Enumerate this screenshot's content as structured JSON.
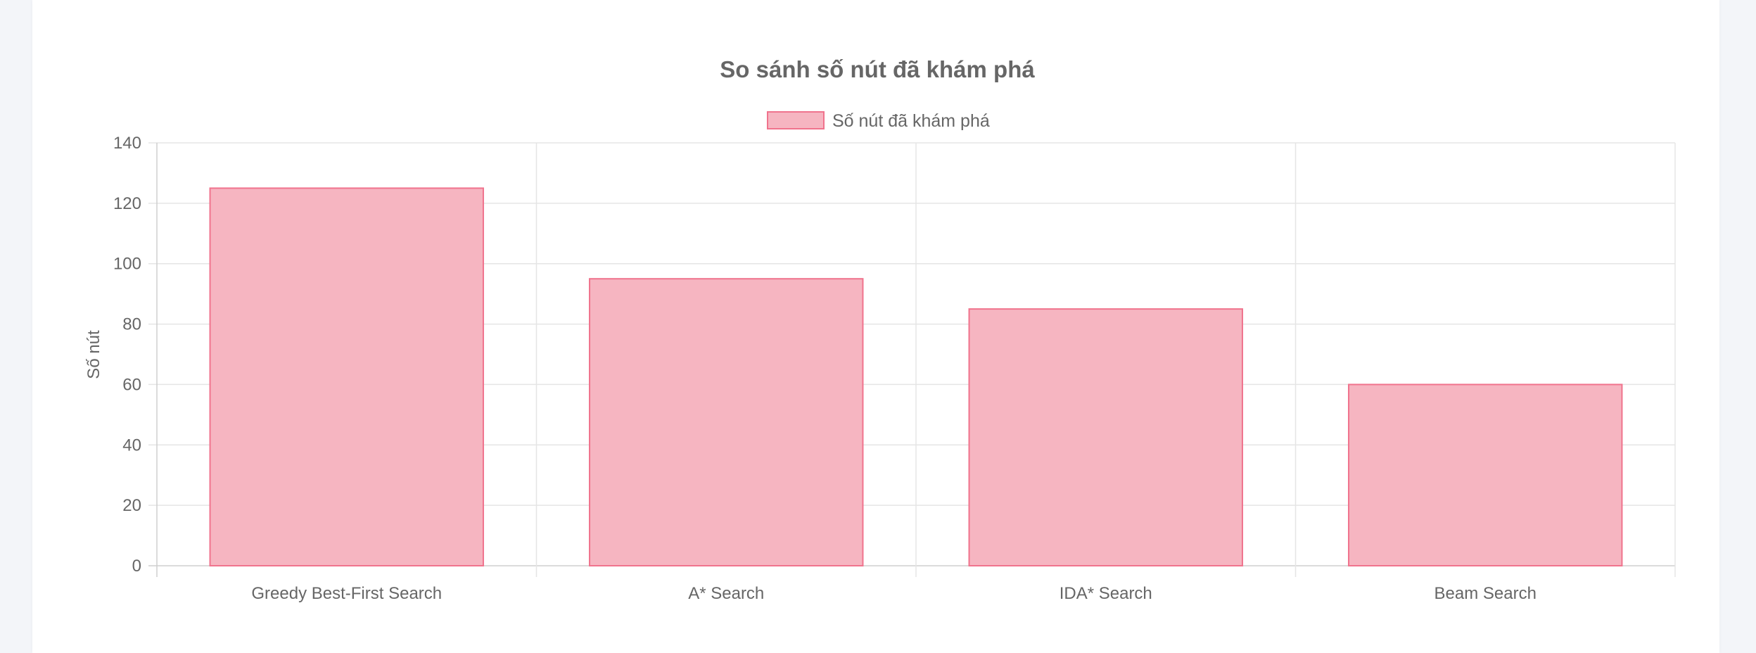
{
  "chart_data": {
    "type": "bar",
    "title": "So sánh số nút đã khám phá",
    "ylabel": "Số nút",
    "xlabel": "",
    "categories": [
      "Greedy Best-First Search",
      "A* Search",
      "IDA* Search",
      "Beam Search"
    ],
    "series": [
      {
        "name": "Số nút đã khám phá",
        "values": [
          125,
          95,
          85,
          60
        ]
      }
    ],
    "ylim": [
      0,
      140
    ],
    "yticks": [
      0,
      20,
      40,
      60,
      80,
      100,
      120,
      140
    ],
    "grid": true,
    "legend_position": "top-center",
    "colors": {
      "bar_fill": "#f6b5c1",
      "bar_border": "#f0738d",
      "grid": "#e5e5e5",
      "text": "#666666"
    }
  }
}
